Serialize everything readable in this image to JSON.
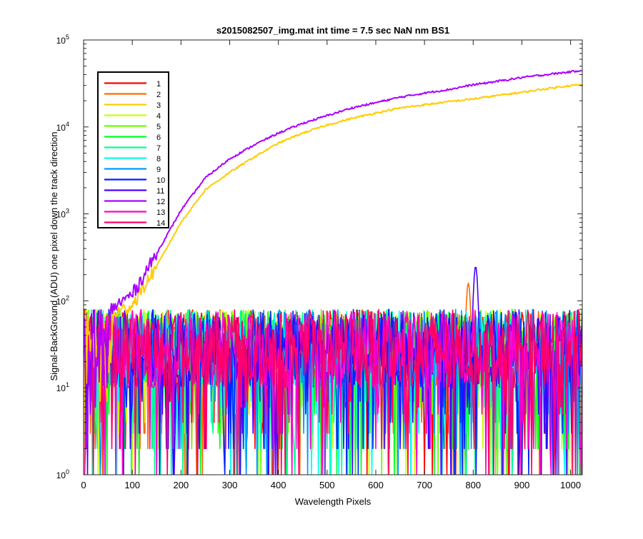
{
  "chart_data": {
    "type": "line",
    "title": "s2015082507_img.mat int time = 7.5 sec  NaN nm BS1",
    "xlabel": "Wavelength Pixels",
    "ylabel": "Signal-BackGround (ADU) one pixel down the track direction",
    "xlim": [
      0,
      1024
    ],
    "ylim": [
      1,
      100000
    ],
    "yscale": "log",
    "grid": false,
    "legend_position": "top-left",
    "x_ticks": [
      0,
      100,
      200,
      300,
      400,
      500,
      600,
      700,
      800,
      900,
      1000
    ],
    "y_ticks": [
      {
        "value": 1,
        "base": "10",
        "exp": "0"
      },
      {
        "value": 10,
        "base": "10",
        "exp": "1"
      },
      {
        "value": 100,
        "base": "10",
        "exp": "2"
      },
      {
        "value": 1000,
        "base": "10",
        "exp": "3"
      },
      {
        "value": 10000,
        "base": "10",
        "exp": "4"
      },
      {
        "value": 100000,
        "base": "10",
        "exp": "5"
      }
    ],
    "noise_band": {
      "x_range": [
        0,
        1024
      ],
      "typical_range": [
        8,
        80
      ],
      "min": 1,
      "max": 100
    },
    "series": [
      {
        "name": "1",
        "color": "#ff0000",
        "kind": "noise"
      },
      {
        "name": "2",
        "color": "#ff6a00",
        "kind": "noise",
        "peak": {
          "x": 790,
          "y": 160
        }
      },
      {
        "name": "3",
        "color": "#ffcc00",
        "kind": "rising",
        "x": [
          60,
          100,
          150,
          200,
          250,
          300,
          350,
          400,
          450,
          500,
          550,
          600,
          650,
          700,
          750,
          800,
          850,
          900,
          950,
          1000,
          1024
        ],
        "y": [
          70,
          90,
          250,
          800,
          1900,
          3000,
          4500,
          6500,
          8500,
          10500,
          12500,
          14500,
          16500,
          18000,
          19500,
          21000,
          23000,
          25000,
          27500,
          30000,
          30500
        ]
      },
      {
        "name": "4",
        "color": "#ccff00",
        "kind": "noise"
      },
      {
        "name": "5",
        "color": "#66ff00",
        "kind": "noise"
      },
      {
        "name": "6",
        "color": "#00ff22",
        "kind": "noise"
      },
      {
        "name": "7",
        "color": "#00ff99",
        "kind": "noise"
      },
      {
        "name": "8",
        "color": "#00ffee",
        "kind": "noise"
      },
      {
        "name": "9",
        "color": "#0099ff",
        "kind": "noise"
      },
      {
        "name": "10",
        "color": "#0022ff",
        "kind": "noise"
      },
      {
        "name": "11",
        "color": "#4400ff",
        "kind": "noise",
        "peak": {
          "x": 805,
          "y": 250
        }
      },
      {
        "name": "12",
        "color": "#aa00ff",
        "kind": "rising",
        "x": [
          55,
          100,
          150,
          200,
          250,
          300,
          350,
          400,
          450,
          500,
          550,
          600,
          650,
          700,
          750,
          800,
          850,
          900,
          950,
          1000,
          1024
        ],
        "y": [
          80,
          120,
          350,
          1100,
          2600,
          4300,
          6200,
          8500,
          11000,
          13500,
          16500,
          19000,
          22000,
          24500,
          27000,
          30500,
          33500,
          37000,
          40000,
          43000,
          45000
        ]
      },
      {
        "name": "13",
        "color": "#ff00cc",
        "kind": "noise"
      },
      {
        "name": "14",
        "color": "#ff0066",
        "kind": "noise"
      }
    ]
  }
}
